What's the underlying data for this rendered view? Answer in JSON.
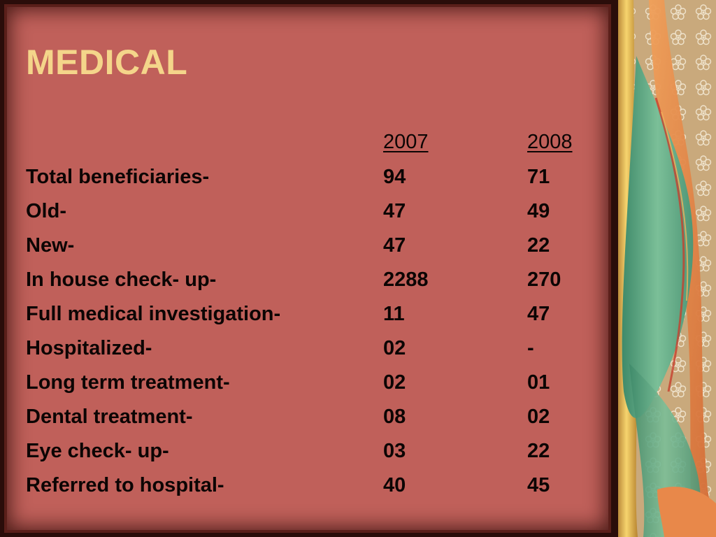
{
  "slide": {
    "title": "MEDICAL",
    "columns": [
      "2007",
      "2008"
    ],
    "rows": [
      {
        "label": "Total beneficiaries-",
        "y2007": "94",
        "y2008": "71"
      },
      {
        "label": "Old-",
        "y2007": "47",
        "y2008": "49"
      },
      {
        "label": "New-",
        "y2007": "47",
        "y2008": "22"
      },
      {
        "label": "In house check- up-",
        "y2007": "2288",
        "y2008": "270"
      },
      {
        "label": "Full medical investigation-",
        "y2007": "11",
        "y2008": "47"
      },
      {
        "label": "Hospitalized-",
        "y2007": "02",
        "y2008": "-"
      },
      {
        "label": "Long term treatment-",
        "y2007": "02",
        "y2008": "01"
      },
      {
        "label": "Dental treatment-",
        "y2007": "08",
        "y2008": "02"
      },
      {
        "label": "Eye check- up-",
        "y2007": "03",
        "y2008": "22"
      },
      {
        "label": "Referred to hospital-",
        "y2007": "40",
        "y2008": "45"
      }
    ]
  },
  "colors": {
    "slide_bg": "#c0605a",
    "title": "#f4d58a",
    "text": "#0c0504",
    "deco_bg": "#caa87a",
    "deco_green": "#5fa383",
    "deco_orange": "#e08a45",
    "deco_gold": "#f2c15a"
  }
}
